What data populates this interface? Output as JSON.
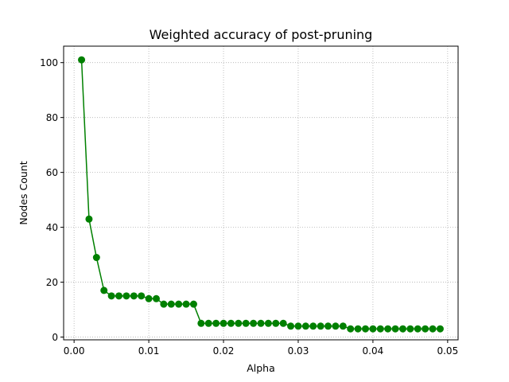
{
  "chart_data": {
    "type": "line",
    "title": "Weighted accuracy of post-pruning",
    "xlabel": "Alpha",
    "ylabel": "Nodes Count",
    "xlim": [
      -0.0014,
      0.0514
    ],
    "ylim": [
      -1,
      106
    ],
    "xticks": [
      0.0,
      0.01,
      0.02,
      0.03,
      0.04,
      0.05
    ],
    "xtick_labels": [
      "0.00",
      "0.01",
      "0.02",
      "0.03",
      "0.04",
      "0.05"
    ],
    "yticks": [
      0,
      20,
      40,
      60,
      80,
      100
    ],
    "ytick_labels": [
      "0",
      "20",
      "40",
      "60",
      "80",
      "100"
    ],
    "grid": true,
    "series": [
      {
        "color": "#008000",
        "marker": "circle",
        "x": [
          0.001,
          0.002,
          0.003,
          0.004,
          0.005,
          0.006,
          0.007,
          0.008,
          0.009,
          0.01,
          0.011,
          0.012,
          0.013,
          0.014,
          0.015,
          0.016,
          0.017,
          0.018,
          0.019,
          0.02,
          0.021,
          0.022,
          0.023,
          0.024,
          0.025,
          0.026,
          0.027,
          0.028,
          0.029,
          0.03,
          0.031,
          0.032,
          0.033,
          0.034,
          0.035,
          0.036,
          0.037,
          0.038,
          0.039,
          0.04,
          0.041,
          0.042,
          0.043,
          0.044,
          0.045,
          0.046,
          0.047,
          0.048,
          0.049
        ],
        "y": [
          101,
          43,
          29,
          17,
          15,
          15,
          15,
          15,
          15,
          14,
          14,
          12,
          12,
          12,
          12,
          12,
          5,
          5,
          5,
          5,
          5,
          5,
          5,
          5,
          5,
          5,
          5,
          5,
          4,
          4,
          4,
          4,
          4,
          4,
          4,
          4,
          3,
          3,
          3,
          3,
          3,
          3,
          3,
          3,
          3,
          3,
          3,
          3,
          3
        ]
      }
    ]
  }
}
